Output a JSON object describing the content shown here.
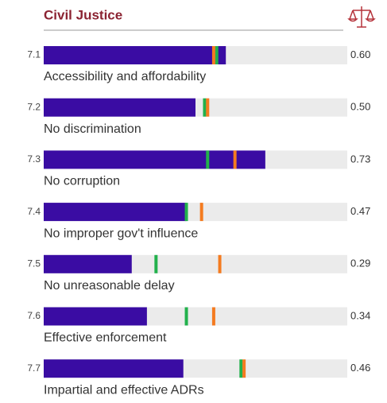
{
  "chart_data": {
    "type": "bar",
    "title": "Civil Justice",
    "codes": [
      "7.1",
      "7.2",
      "7.3",
      "7.4",
      "7.5",
      "7.6",
      "7.7"
    ],
    "categories": [
      "Accessibility and affordability",
      "No discrimination",
      "No corruption",
      "No improper gov't influence",
      "No unreasonable delay",
      "Effective enforcement",
      "Impartial and effective ADRs"
    ],
    "values": [
      0.6,
      0.5,
      0.73,
      0.47,
      0.29,
      0.34,
      0.46
    ],
    "value_labels": [
      "0.60",
      "0.50",
      "0.73",
      "0.47",
      "0.29",
      "0.34",
      "0.46"
    ],
    "color": "#3a0ca3",
    "xlim": [
      0,
      1
    ],
    "markers": [
      {
        "color": "#22b14c",
        "values": [
          0.57,
          0.53,
          0.54,
          0.47,
          0.37,
          0.47,
          0.65
        ]
      },
      {
        "color": "#f47b20",
        "values": [
          0.56,
          0.54,
          0.63,
          0.52,
          0.58,
          0.56,
          0.66
        ]
      }
    ]
  }
}
